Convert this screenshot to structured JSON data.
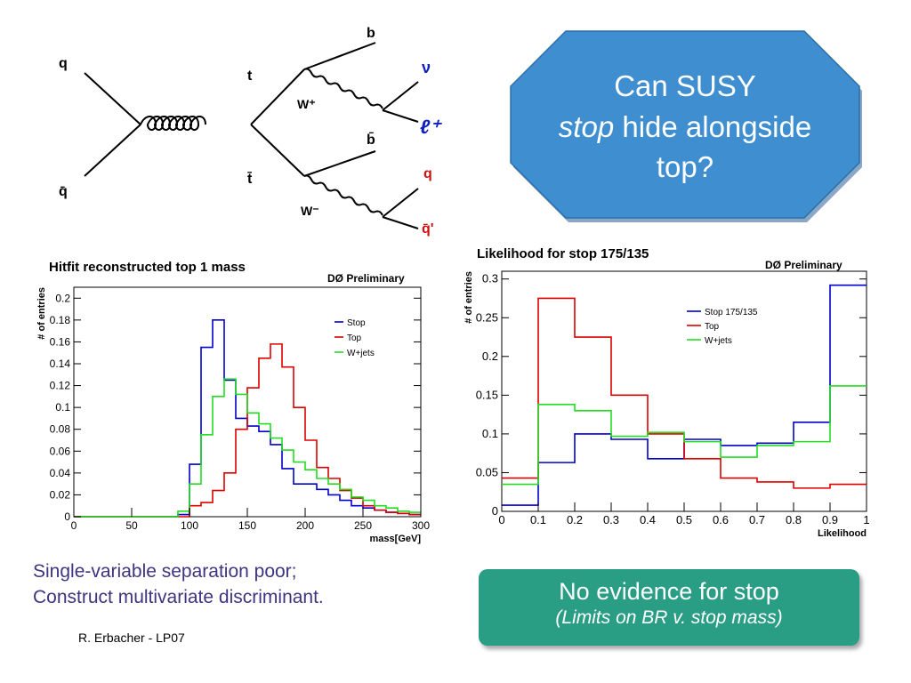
{
  "feynman": {
    "labels": {
      "q_in": "q",
      "qbar_in": "q̄",
      "t": "t",
      "tbar": "t̄",
      "b": "b",
      "bbar": "b̄",
      "nu": "ν",
      "lepton": "ℓ⁺",
      "q_out": "q",
      "qprime": "q̄'",
      "wplus": "W⁺",
      "wminus": "W⁻"
    },
    "colors": {
      "line": "#000000",
      "nu": "#1020c0",
      "lepton": "#1020c0",
      "quark_out": "#d01010"
    }
  },
  "callout": {
    "line1": "Can SUSY",
    "line2_italic": "stop",
    "line2_rest": " hide alongside",
    "line3": "top?",
    "color": "#3f8fd0"
  },
  "caption": {
    "line1": "Single-variable separation poor;",
    "line2": "Construct multivariate discriminant."
  },
  "author": "R. Erbacher - LP07",
  "evidence": {
    "line1": "No evidence for stop",
    "line2": "(Limits on BR v. stop mass)",
    "color": "#2a9d85"
  },
  "chart_data": [
    {
      "type": "line",
      "title": "Hitfit reconstructed top 1 mass",
      "annotation": "DØ Preliminary",
      "xlabel": "mass[GeV]",
      "ylabel": "# of entries",
      "xlim": [
        0,
        300
      ],
      "ylim": [
        0,
        0.21
      ],
      "xticks": [
        0,
        50,
        100,
        150,
        200,
        250,
        300
      ],
      "yticks": [
        0,
        0.02,
        0.04,
        0.06,
        0.08,
        0.1,
        0.12,
        0.14,
        0.16,
        0.18,
        0.2
      ],
      "ytick_labels": [
        "0",
        "0.02",
        "0.04",
        "0.06",
        "0.08",
        "0.1",
        "0.12",
        "0.14",
        "0.16",
        "0.18",
        "0.2"
      ],
      "legend_position": "top-right",
      "bin_edges": [
        0,
        10,
        20,
        30,
        40,
        50,
        60,
        70,
        80,
        90,
        100,
        110,
        120,
        130,
        140,
        150,
        160,
        170,
        180,
        190,
        200,
        210,
        220,
        230,
        240,
        250,
        260,
        270,
        280,
        290,
        300
      ],
      "series": [
        {
          "name": "Stop",
          "color": "#0000cc",
          "values": [
            0,
            0,
            0,
            0,
            0,
            0,
            0,
            0,
            0,
            0.002,
            0.048,
            0.155,
            0.18,
            0.125,
            0.09,
            0.083,
            0.078,
            0.066,
            0.044,
            0.03,
            0.03,
            0.025,
            0.02,
            0.015,
            0.01,
            0.008,
            0.006,
            0.004,
            0.003,
            0.002
          ]
        },
        {
          "name": "Top",
          "color": "#dd0000",
          "values": [
            0,
            0,
            0,
            0,
            0,
            0,
            0,
            0,
            0,
            0,
            0.01,
            0.013,
            0.024,
            0.04,
            0.08,
            0.118,
            0.145,
            0.158,
            0.137,
            0.1,
            0.07,
            0.045,
            0.035,
            0.024,
            0.017,
            0.01,
            0.006,
            0.004,
            0.003,
            0.002
          ]
        },
        {
          "name": "W+jets",
          "color": "#22dd22",
          "values": [
            0,
            0,
            0,
            0,
            0,
            0,
            0,
            0,
            0,
            0.005,
            0.03,
            0.075,
            0.11,
            0.126,
            0.112,
            0.095,
            0.085,
            0.072,
            0.061,
            0.05,
            0.043,
            0.035,
            0.03,
            0.025,
            0.018,
            0.015,
            0.01,
            0.008,
            0.005,
            0.004
          ]
        }
      ]
    },
    {
      "type": "line",
      "title": "Likelihood for stop 175/135",
      "annotation": "DØ Preliminary",
      "xlabel": "Likelihood",
      "ylabel": "# of entries",
      "xlim": [
        0,
        1
      ],
      "ylim": [
        0,
        0.31
      ],
      "xticks": [
        0,
        0.1,
        0.2,
        0.3,
        0.4,
        0.5,
        0.6,
        0.7,
        0.8,
        0.9,
        1
      ],
      "xtick_labels": [
        "0",
        "0.1",
        "0.2",
        "0.3",
        "0.4",
        "0.5",
        "0.6",
        "0.7",
        "0.8",
        "0.9",
        "1"
      ],
      "yticks": [
        0,
        0.05,
        0.1,
        0.15,
        0.2,
        0.25,
        0.3
      ],
      "ytick_labels": [
        "0",
        "0.05",
        "0.1",
        "0.15",
        "0.2",
        "0.25",
        "0.3"
      ],
      "legend_position": "top-right",
      "bin_edges": [
        0,
        0.1,
        0.2,
        0.3,
        0.4,
        0.5,
        0.6,
        0.7,
        0.8,
        0.9,
        1.0
      ],
      "series": [
        {
          "name": "Stop 175/135",
          "color": "#0000cc",
          "values": [
            0.008,
            0.063,
            0.1,
            0.093,
            0.068,
            0.093,
            0.085,
            0.088,
            0.115,
            0.292
          ]
        },
        {
          "name": "Top",
          "color": "#dd0000",
          "values": [
            0.043,
            0.275,
            0.225,
            0.15,
            0.1,
            0.068,
            0.043,
            0.038,
            0.03,
            0.035
          ]
        },
        {
          "name": "W+jets",
          "color": "#22dd22",
          "values": [
            0.035,
            0.138,
            0.13,
            0.097,
            0.102,
            0.09,
            0.07,
            0.085,
            0.09,
            0.162
          ]
        }
      ]
    }
  ]
}
